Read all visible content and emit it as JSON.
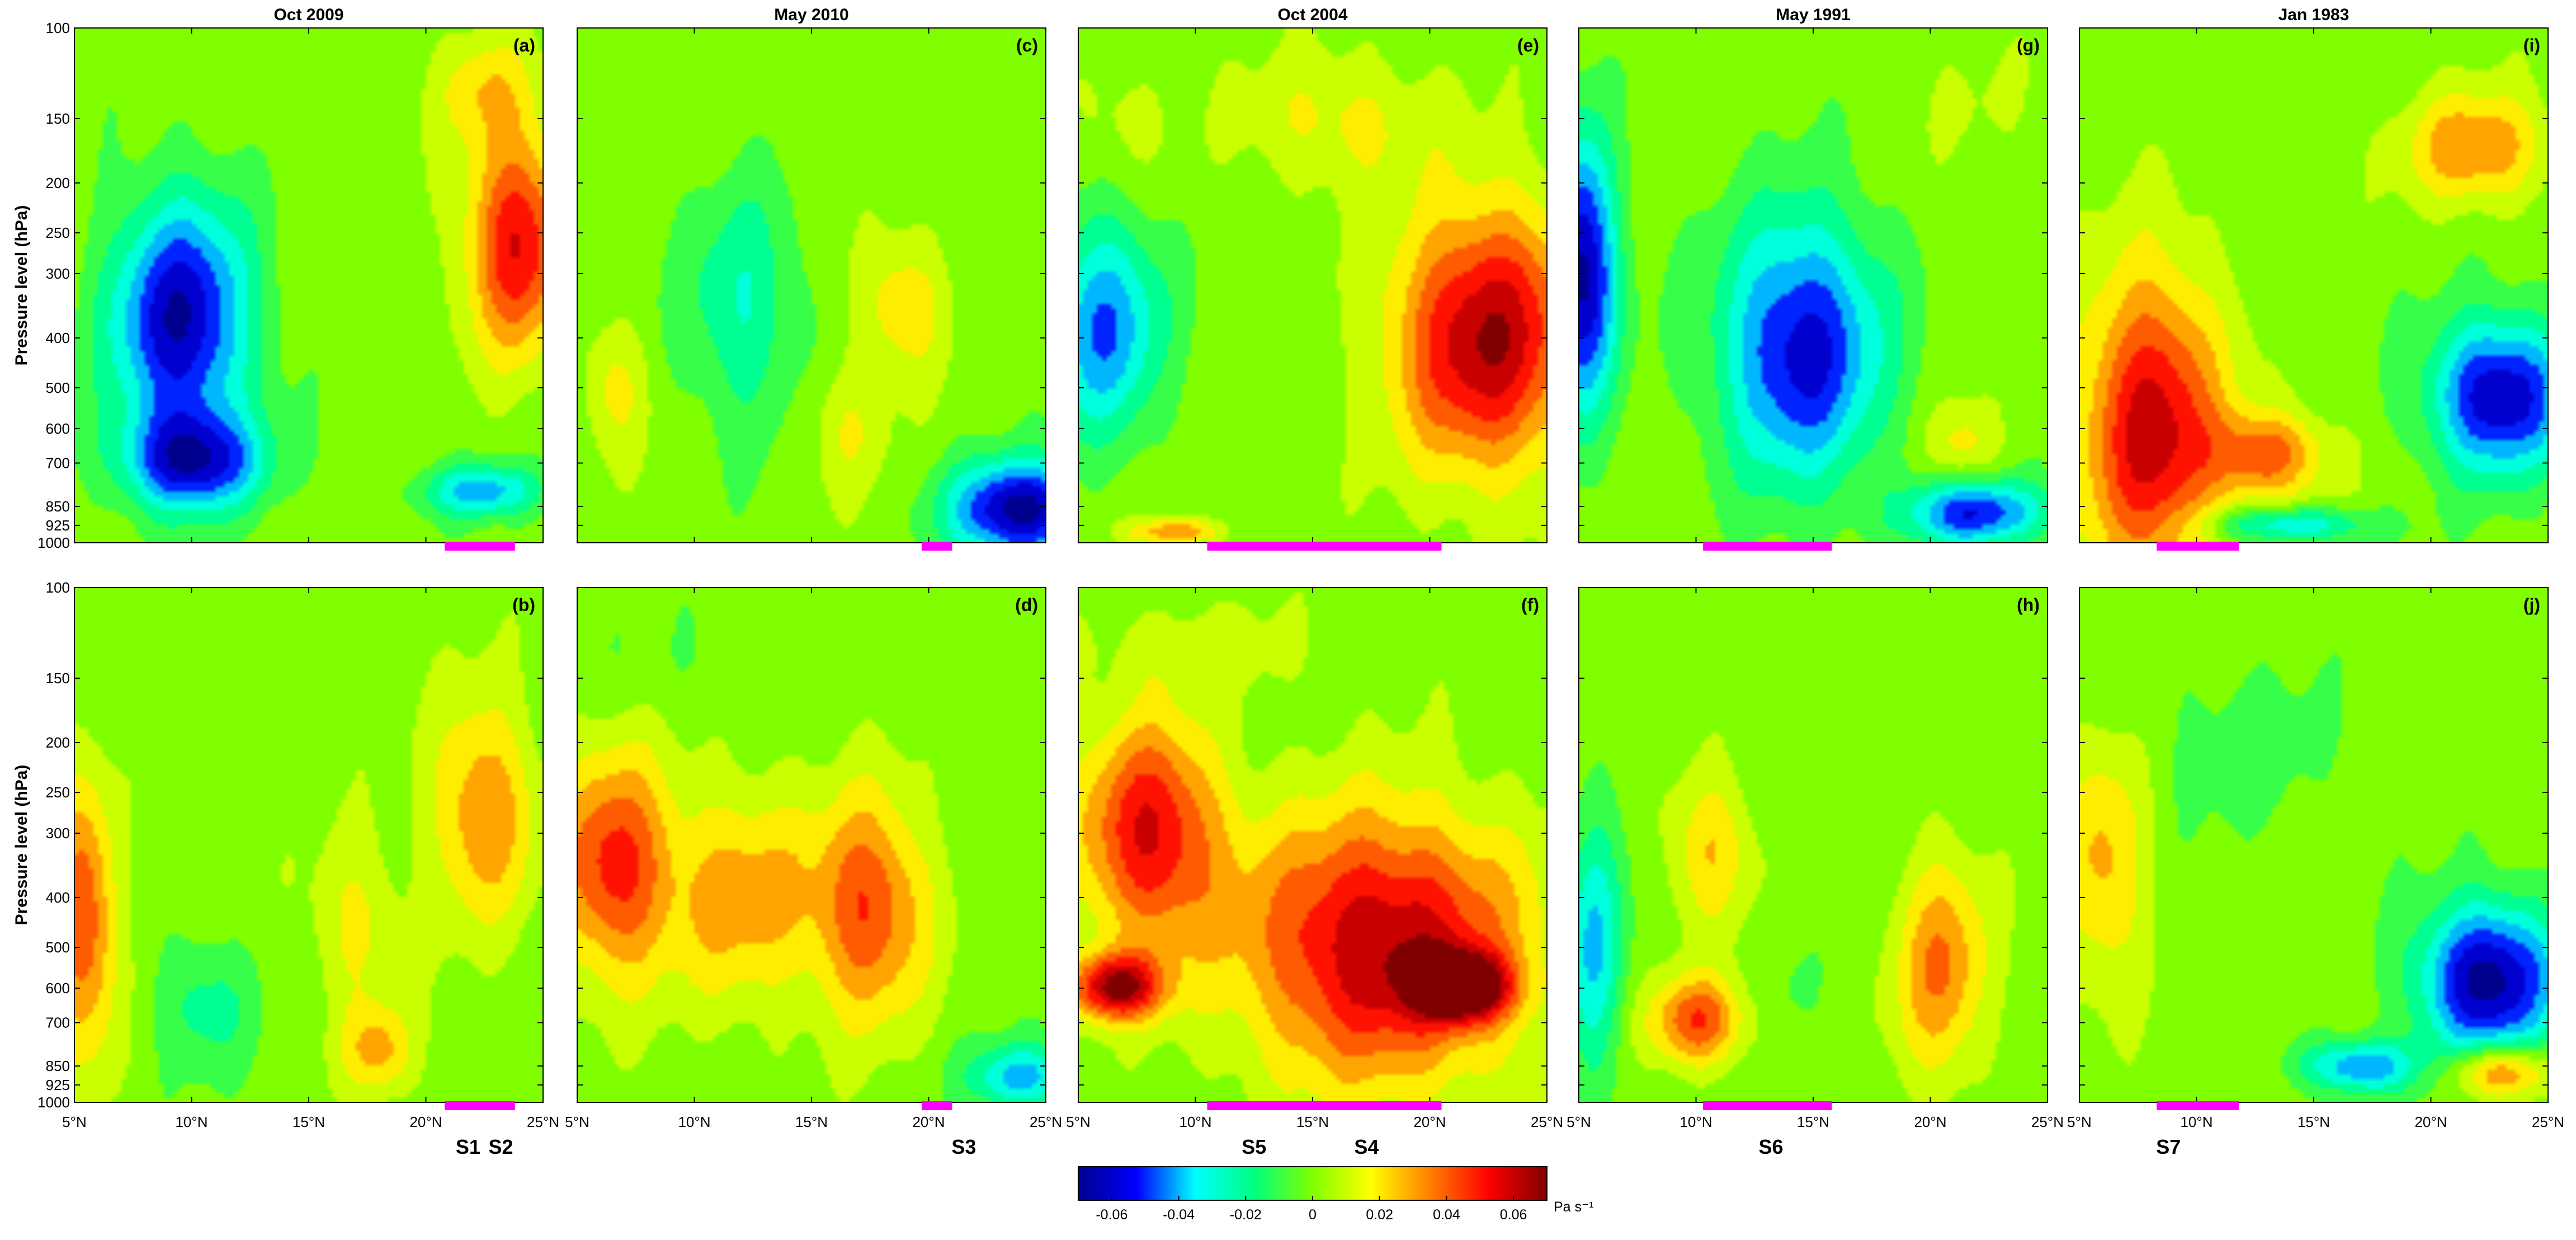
{
  "chart_data": {
    "type": "heatmap",
    "variable_unit": "Pa s⁻¹",
    "colormap": [
      "#00008f",
      "#0000ff",
      "#00ffff",
      "#00ff80",
      "#80ff00",
      "#ffff00",
      "#ff8000",
      "#ff0000",
      "#800000"
    ],
    "highlight_color": "#ff00ff",
    "columns": [
      "Oct 2009",
      "May 2010",
      "Oct 2004",
      "May 1991",
      "Jan 1983"
    ],
    "ylabel": "Pressure level (hPa)",
    "ylim": [
      1000,
      100
    ],
    "y_scale": "log",
    "yticks": [
      "100",
      "150",
      "200",
      "250",
      "300",
      "400",
      "500",
      "600",
      "700",
      "850",
      "925",
      "1000"
    ],
    "xlim": [
      5,
      25
    ],
    "xticks": [
      "5°N",
      "10°N",
      "15°N",
      "20°N",
      "25°N"
    ],
    "colorbar": {
      "range": [
        -0.07,
        0.07
      ],
      "ticks": [
        "-0.06",
        "-0.04",
        "-0.02",
        "0",
        "0.02",
        "0.04",
        "0.06"
      ],
      "unit": "Pa s⁻¹"
    },
    "panels": [
      {
        "label": "(a)",
        "row": 0,
        "col": 0,
        "bar": [
          20.8,
          23.8
        ],
        "sites": [],
        "features": [
          {
            "x": 9.5,
            "p": 370,
            "v": -0.065,
            "rx": 3.0,
            "rp": 0.55
          },
          {
            "x": 10,
            "p": 700,
            "v": -0.055,
            "rx": 3.0,
            "rp": 0.22
          },
          {
            "x": 24,
            "p": 260,
            "v": 0.055,
            "rx": 2.2,
            "rp": 0.5
          },
          {
            "x": 22.5,
            "p": 800,
            "v": -0.04,
            "rx": 2.5,
            "rp": 0.12
          },
          {
            "x": 22.5,
            "p": 130,
            "v": 0.02,
            "rx": 2.0,
            "rp": 0.25
          }
        ]
      },
      {
        "label": "(b)",
        "row": 1,
        "col": 0,
        "bar": [
          20.8,
          23.8
        ],
        "sites": [
          {
            "name": "S1",
            "x": 21.8
          },
          {
            "name": "S2",
            "x": 23.2
          }
        ],
        "features": [
          {
            "x": 5.3,
            "p": 450,
            "v": 0.045,
            "rx": 1.4,
            "rp": 0.6
          },
          {
            "x": 22.5,
            "p": 270,
            "v": 0.035,
            "rx": 2.2,
            "rp": 0.5
          },
          {
            "x": 18,
            "p": 800,
            "v": 0.028,
            "rx": 1.5,
            "rp": 0.2
          },
          {
            "x": 10.5,
            "p": 650,
            "v": -0.02,
            "rx": 2.0,
            "rp": 0.3
          },
          {
            "x": 17,
            "p": 450,
            "v": 0.018,
            "rx": 2.0,
            "rp": 0.4
          }
        ]
      },
      {
        "label": "(c)",
        "row": 0,
        "col": 1,
        "bar": [
          19.7,
          21.0
        ],
        "sites": [],
        "features": [
          {
            "x": 24,
            "p": 870,
            "v": -0.07,
            "rx": 3.0,
            "rp": 0.22
          },
          {
            "x": 12,
            "p": 350,
            "v": -0.025,
            "rx": 2.5,
            "rp": 0.55
          },
          {
            "x": 19,
            "p": 350,
            "v": 0.025,
            "rx": 1.8,
            "rp": 0.3
          },
          {
            "x": 6.5,
            "p": 500,
            "v": 0.02,
            "rx": 1.3,
            "rp": 0.3
          },
          {
            "x": 16.5,
            "p": 600,
            "v": 0.015,
            "rx": 1.8,
            "rp": 0.3
          }
        ]
      },
      {
        "label": "(d)",
        "row": 1,
        "col": 1,
        "bar": [
          19.7,
          21.0
        ],
        "sites": [
          {
            "name": "S3",
            "x": 21.5
          }
        ],
        "features": [
          {
            "x": 6.5,
            "p": 350,
            "v": 0.05,
            "rx": 2.5,
            "rp": 0.5
          },
          {
            "x": 17.5,
            "p": 420,
            "v": 0.045,
            "rx": 2.5,
            "rp": 0.5
          },
          {
            "x": 24,
            "p": 900,
            "v": -0.04,
            "rx": 2.2,
            "rp": 0.15
          },
          {
            "x": 12,
            "p": 400,
            "v": 0.03,
            "rx": 3.0,
            "rp": 0.5
          },
          {
            "x": 10,
            "p": 140,
            "v": -0.005,
            "rx": 4.0,
            "rp": 0.25
          }
        ]
      },
      {
        "label": "(e)",
        "row": 0,
        "col": 2,
        "bar": [
          10.5,
          20.5
        ],
        "sites": [],
        "features": [
          {
            "x": 22.5,
            "p": 400,
            "v": 0.065,
            "rx": 4.0,
            "rp": 0.6
          },
          {
            "x": 6,
            "p": 380,
            "v": -0.045,
            "rx": 2.5,
            "rp": 0.5
          },
          {
            "x": 16,
            "p": 150,
            "v": 0.018,
            "rx": 4.0,
            "rp": 0.3
          },
          {
            "x": 9,
            "p": 960,
            "v": 0.035,
            "rx": 2.0,
            "rp": 0.06
          },
          {
            "x": 6.5,
            "p": 150,
            "v": 0.01,
            "rx": 2.0,
            "rp": 0.3
          }
        ]
      },
      {
        "label": "(f)",
        "row": 1,
        "col": 2,
        "bar": [
          10.5,
          20.5
        ],
        "sites": [
          {
            "name": "S5",
            "x": 12.5
          },
          {
            "name": "S4",
            "x": 17.3
          }
        ],
        "features": [
          {
            "x": 18,
            "p": 500,
            "v": 0.065,
            "rx": 6.0,
            "rp": 0.6
          },
          {
            "x": 8,
            "p": 300,
            "v": 0.055,
            "rx": 3.0,
            "rp": 0.5
          },
          {
            "x": 21.5,
            "p": 600,
            "v": 0.07,
            "rx": 2.0,
            "rp": 0.15
          },
          {
            "x": 6.5,
            "p": 600,
            "v": 0.065,
            "rx": 2.0,
            "rp": 0.15
          },
          {
            "x": 10,
            "p": 130,
            "v": 0.01,
            "rx": 5.0,
            "rp": 0.2
          }
        ]
      },
      {
        "label": "(g)",
        "row": 0,
        "col": 3,
        "bar": [
          10.3,
          15.8
        ],
        "sites": [],
        "features": [
          {
            "x": 5,
            "p": 300,
            "v": -0.07,
            "rx": 1.5,
            "rp": 0.6
          },
          {
            "x": 14.5,
            "p": 420,
            "v": -0.06,
            "rx": 3.5,
            "rp": 0.6
          },
          {
            "x": 22,
            "p": 880,
            "v": -0.055,
            "rx": 3.0,
            "rp": 0.15
          },
          {
            "x": 21.5,
            "p": 650,
            "v": 0.02,
            "rx": 1.5,
            "rp": 0.2
          },
          {
            "x": 22,
            "p": 140,
            "v": 0.005,
            "rx": 3.0,
            "rp": 0.3
          }
        ]
      },
      {
        "label": "(h)",
        "row": 1,
        "col": 3,
        "bar": [
          10.3,
          15.8
        ],
        "sites": [
          {
            "name": "S6",
            "x": 13.2
          }
        ],
        "features": [
          {
            "x": 10,
            "p": 700,
            "v": 0.045,
            "rx": 2.0,
            "rp": 0.2
          },
          {
            "x": 20.5,
            "p": 550,
            "v": 0.035,
            "rx": 2.0,
            "rp": 0.5
          },
          {
            "x": 5.5,
            "p": 500,
            "v": -0.035,
            "rx": 1.3,
            "rp": 0.6
          },
          {
            "x": 10.5,
            "p": 320,
            "v": 0.025,
            "rx": 1.8,
            "rp": 0.35
          },
          {
            "x": 14,
            "p": 600,
            "v": -0.005,
            "rx": 1.2,
            "rp": 0.2
          }
        ]
      },
      {
        "label": "(i)",
        "row": 0,
        "col": 4,
        "bar": [
          8.3,
          11.8
        ],
        "sites": [],
        "features": [
          {
            "x": 8,
            "p": 600,
            "v": 0.06,
            "rx": 3.0,
            "rp": 0.7
          },
          {
            "x": 23,
            "p": 520,
            "v": -0.065,
            "rx": 3.0,
            "rp": 0.35
          },
          {
            "x": 22,
            "p": 170,
            "v": 0.035,
            "rx": 3.0,
            "rp": 0.25
          },
          {
            "x": 13,
            "p": 680,
            "v": 0.04,
            "rx": 2.5,
            "rp": 0.2
          },
          {
            "x": 14,
            "p": 930,
            "v": -0.035,
            "rx": 3.5,
            "rp": 0.08
          }
        ]
      },
      {
        "label": "(j)",
        "row": 1,
        "col": 4,
        "bar": [
          8.3,
          11.8
        ],
        "sites": [
          {
            "name": "S7",
            "x": 8.8
          }
        ],
        "features": [
          {
            "x": 22.5,
            "p": 580,
            "v": -0.07,
            "rx": 3.0,
            "rp": 0.35
          },
          {
            "x": 23,
            "p": 880,
            "v": 0.045,
            "rx": 2.2,
            "rp": 0.12
          },
          {
            "x": 6,
            "p": 350,
            "v": 0.028,
            "rx": 1.8,
            "rp": 0.55
          },
          {
            "x": 17,
            "p": 860,
            "v": -0.045,
            "rx": 2.5,
            "rp": 0.12
          },
          {
            "x": 12,
            "p": 200,
            "v": -0.01,
            "rx": 4.0,
            "rp": 0.4
          }
        ]
      }
    ]
  }
}
